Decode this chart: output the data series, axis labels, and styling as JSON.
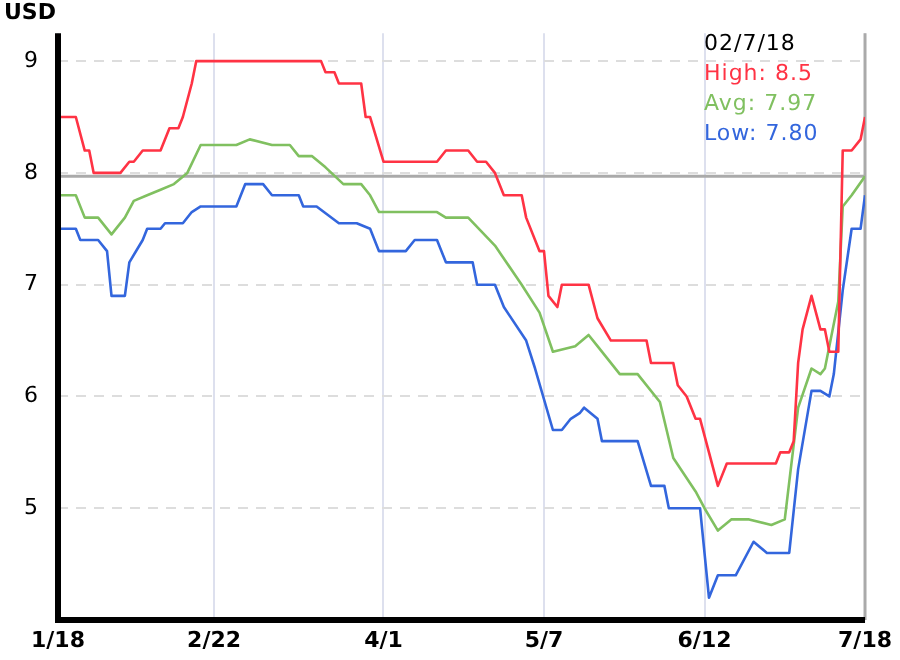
{
  "chart_data": {
    "type": "line",
    "ylabel": "USD",
    "annotations": [
      "02/7/18",
      "High: 8.5",
      "Avg: 7.97",
      "Low: 7.80"
    ],
    "xlim": [
      "--01-18",
      "--07-18"
    ],
    "xticks": [
      {
        "value": "--01-18",
        "label": "1/18"
      },
      {
        "value": "--02-22",
        "label": "2/22"
      },
      {
        "value": "--04-01",
        "label": "4/1"
      },
      {
        "value": "--05-07",
        "label": "5/7"
      },
      {
        "value": "--06-12",
        "label": "6/12"
      },
      {
        "value": "--07-18",
        "label": "7/18"
      }
    ],
    "ylim": [
      4,
      9.25
    ],
    "yticks": [
      5,
      6,
      7,
      8,
      9
    ],
    "grid": true,
    "legend": false,
    "marker": "none",
    "line_style": "solid",
    "ref_lines": [
      {
        "axis": "y",
        "value": 7.97,
        "color": "#aaaaaa"
      },
      {
        "axis": "x",
        "value": "--07-18",
        "color": "#aaaaaa"
      }
    ],
    "series": [
      {
        "color": "#ff3344",
        "x": [
          "--01-18",
          "--01-22",
          "--01-24",
          "--01-25",
          "--01-26",
          "--02-01",
          "--02-03",
          "--02-04",
          "--02-06",
          "--02-10",
          "--02-12",
          "--02-14",
          "--02-15",
          "--02-17",
          "--02-18",
          "--03-18",
          "--03-19",
          "--03-21",
          "--03-22",
          "--03-27",
          "--03-28",
          "--03-29",
          "--04-01",
          "--04-13",
          "--04-15",
          "--04-20",
          "--04-22",
          "--04-24",
          "--04-26",
          "--04-28",
          "--05-02",
          "--05-03",
          "--05-06",
          "--05-07",
          "--05-08",
          "--05-10",
          "--05-11",
          "--05-17",
          "--05-19",
          "--05-22",
          "--05-30",
          "--05-31",
          "--06-05",
          "--06-06",
          "--06-08",
          "--06-10",
          "--06-11",
          "--06-13",
          "--06-15",
          "--06-17",
          "--06-28",
          "--06-29",
          "--07-01",
          "--07-02",
          "--07-03",
          "--07-04",
          "--07-06",
          "--07-08",
          "--07-09",
          "--07-10",
          "--07-12",
          "--07-13",
          "--07-15",
          "--07-17",
          "--07-18"
        ],
        "values": [
          8.5,
          8.5,
          8.2,
          8.2,
          8.0,
          8.0,
          8.1,
          8.1,
          8.2,
          8.2,
          8.4,
          8.4,
          8.5,
          8.8,
          9.0,
          9.0,
          8.9,
          8.9,
          8.8,
          8.8,
          8.5,
          8.5,
          8.1,
          8.1,
          8.2,
          8.2,
          8.1,
          8.1,
          8.0,
          7.8,
          7.8,
          7.6,
          7.3,
          7.3,
          6.9,
          6.8,
          7.0,
          7.0,
          6.7,
          6.5,
          6.5,
          6.3,
          6.3,
          6.1,
          6.0,
          5.8,
          5.8,
          5.5,
          5.2,
          5.4,
          5.4,
          5.5,
          5.5,
          5.6,
          6.3,
          6.6,
          6.9,
          6.6,
          6.6,
          6.4,
          6.4,
          8.2,
          8.2,
          8.3,
          8.5
        ]
      },
      {
        "color": "#80c060",
        "x": [
          "--01-18",
          "--01-22",
          "--01-24",
          "--01-27",
          "--01-30",
          "--02-02",
          "--02-04",
          "--02-07",
          "--02-10",
          "--02-13",
          "--02-16",
          "--02-19",
          "--02-27",
          "--03-02",
          "--03-07",
          "--03-11",
          "--03-13",
          "--03-16",
          "--03-19",
          "--03-23",
          "--03-27",
          "--03-29",
          "--03-31",
          "--04-13",
          "--04-15",
          "--04-20",
          "--04-26",
          "--05-02",
          "--05-06",
          "--05-09",
          "--05-14",
          "--05-17",
          "--05-19",
          "--05-24",
          "--05-28",
          "--06-02",
          "--06-05",
          "--06-10",
          "--06-12",
          "--06-15",
          "--06-18",
          "--06-22",
          "--06-27",
          "--06-30",
          "--07-03",
          "--07-06",
          "--07-08",
          "--07-09",
          "--07-12",
          "--07-13",
          "--07-15",
          "--07-18"
        ],
        "values": [
          7.8,
          7.8,
          7.6,
          7.6,
          7.45,
          7.6,
          7.75,
          7.8,
          7.85,
          7.9,
          8.0,
          8.25,
          8.25,
          8.3,
          8.25,
          8.25,
          8.15,
          8.15,
          8.05,
          7.9,
          7.9,
          7.8,
          7.65,
          7.65,
          7.6,
          7.6,
          7.35,
          7.0,
          6.75,
          6.4,
          6.45,
          6.55,
          6.45,
          6.2,
          6.2,
          5.95,
          5.45,
          5.15,
          5.0,
          4.8,
          4.9,
          4.9,
          4.85,
          4.9,
          5.9,
          6.25,
          6.2,
          6.25,
          6.85,
          7.7,
          7.8,
          7.97
        ]
      },
      {
        "color": "#3366dd",
        "x": [
          "--01-18",
          "--01-22",
          "--01-23",
          "--01-27",
          "--01-29",
          "--01-30",
          "--02-02",
          "--02-03",
          "--02-06",
          "--02-07",
          "--02-10",
          "--02-11",
          "--02-15",
          "--02-17",
          "--02-19",
          "--02-27",
          "--03-01",
          "--03-05",
          "--03-07",
          "--03-13",
          "--03-14",
          "--03-17",
          "--03-22",
          "--03-26",
          "--03-29",
          "--03-31",
          "--04-06",
          "--04-08",
          "--04-13",
          "--04-15",
          "--04-21",
          "--04-22",
          "--04-26",
          "--04-28",
          "--05-03",
          "--05-05",
          "--05-09",
          "--05-11",
          "--05-13",
          "--05-15",
          "--05-16",
          "--05-19",
          "--05-20",
          "--05-28",
          "--05-31",
          "--06-03",
          "--06-04",
          "--06-11",
          "--06-13",
          "--06-15",
          "--06-19",
          "--06-23",
          "--06-26",
          "--07-01",
          "--07-03",
          "--07-06",
          "--07-08",
          "--07-10",
          "--07-11",
          "--07-13",
          "--07-15",
          "--07-17",
          "--07-18"
        ],
        "values": [
          7.5,
          7.5,
          7.4,
          7.4,
          7.3,
          6.9,
          6.9,
          7.2,
          7.4,
          7.5,
          7.5,
          7.55,
          7.55,
          7.65,
          7.7,
          7.7,
          7.9,
          7.9,
          7.8,
          7.8,
          7.7,
          7.7,
          7.55,
          7.55,
          7.5,
          7.3,
          7.3,
          7.4,
          7.4,
          7.2,
          7.2,
          7.0,
          7.0,
          6.8,
          6.5,
          6.25,
          5.7,
          5.7,
          5.8,
          5.85,
          5.9,
          5.8,
          5.6,
          5.6,
          5.2,
          5.2,
          5.0,
          5.0,
          4.2,
          4.4,
          4.4,
          4.7,
          4.6,
          4.6,
          5.35,
          6.05,
          6.05,
          6.0,
          6.2,
          6.95,
          7.5,
          7.5,
          7.8
        ]
      }
    ]
  }
}
